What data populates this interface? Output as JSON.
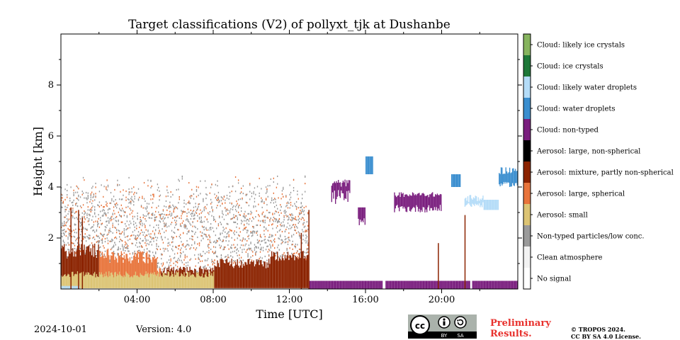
{
  "chart_data": {
    "type": "heatmap",
    "title": "Target classifications (V2) of pollyxt_tjk at Dushanbe",
    "xlabel": "Time [UTC]",
    "ylabel": "Height [km]",
    "x_ticks": [
      "04:00",
      "08:00",
      "12:00",
      "16:00",
      "20:00"
    ],
    "x_tick_hours": [
      4,
      8,
      12,
      16,
      20
    ],
    "xlim_hours": [
      0,
      24
    ],
    "y_ticks": [
      "2",
      "4",
      "6",
      "8"
    ],
    "y_tick_values": [
      2,
      4,
      6,
      8
    ],
    "ylim": [
      0,
      10
    ],
    "legend_placement": "right colorbar",
    "classes": [
      {
        "label": "No signal",
        "color": "#ffffff"
      },
      {
        "label": "Clean atmosphere",
        "color": "#f2f2f2"
      },
      {
        "label": "Non-typed particles/low conc.",
        "color": "#9a9a9a"
      },
      {
        "label": "Aerosol: small",
        "color": "#dcc474"
      },
      {
        "label": "Aerosol: large, spherical",
        "color": "#e8743b"
      },
      {
        "label": "Aerosol: mixture, partly non-spherical",
        "color": "#8b2300"
      },
      {
        "label": "Aerosol: large, non-spherical",
        "color": "#000000"
      },
      {
        "label": "Cloud: non-typed",
        "color": "#7a1e7e"
      },
      {
        "label": "Cloud: water droplets",
        "color": "#3a8ecf"
      },
      {
        "label": "Cloud: likely water droplets",
        "color": "#b4dcf8"
      },
      {
        "label": "Cloud: ice crystals",
        "color": "#1e7838"
      },
      {
        "label": "Cloud: likely ice crystals",
        "color": "#86b45e"
      }
    ]
  },
  "footer": {
    "date": "2024-10-01",
    "version": "Version: 4.0",
    "preliminary": "Preliminary Results.",
    "copyright_line1": "© TROPOS 2024.",
    "copyright_line2": "CC BY SA 4.0 License.",
    "license_badge": {
      "cc": "cc",
      "by": "BY",
      "sa": "SA"
    }
  }
}
